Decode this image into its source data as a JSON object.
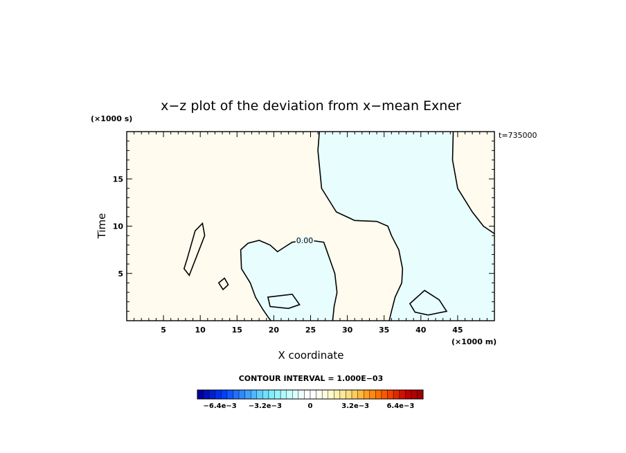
{
  "chart_data": {
    "type": "contour",
    "title": "x−z plot of the deviation from x−mean Exner",
    "xlabel": "X coordinate",
    "ylabel": "Time",
    "x_unit": "(×1000 m)",
    "y_unit": "(×1000 s)",
    "time_label": "t=735000",
    "xlim": [
      0,
      50
    ],
    "ylim": [
      0,
      20
    ],
    "x_ticks": [
      5,
      10,
      15,
      20,
      25,
      30,
      35,
      40,
      45
    ],
    "y_ticks": [
      5,
      10,
      15
    ],
    "contour_interval_text": "CONTOUR INTERVAL = 1.000E−03",
    "contour_label": "0.00",
    "contour_levels": [
      0
    ],
    "regions": [
      {
        "sign": "positive",
        "color": "#fffbee"
      },
      {
        "sign": "negative",
        "color": "#e8fefe"
      }
    ],
    "zero_contour_main": [
      [
        28,
        -0.2
      ],
      [
        28.2,
        1.5
      ],
      [
        28.6,
        3
      ],
      [
        28.3,
        5
      ],
      [
        27.3,
        7.2
      ],
      [
        26.8,
        8.3
      ],
      [
        25,
        8.5
      ],
      [
        23.5,
        8.4
      ],
      [
        22.5,
        8.3
      ],
      [
        21.5,
        7.8
      ],
      [
        20.5,
        7.3
      ],
      [
        19.5,
        8.0
      ],
      [
        18,
        8.5
      ],
      [
        16.5,
        8.2
      ],
      [
        15.5,
        7.5
      ],
      [
        15.6,
        5.5
      ],
      [
        16.8,
        4.0
      ],
      [
        17.5,
        2.5
      ],
      [
        18.5,
        1.2
      ],
      [
        19.3,
        0.3
      ],
      [
        19.6,
        -0.2
      ]
    ],
    "zero_contour_right": [
      [
        26.2,
        20.2
      ],
      [
        26.0,
        18
      ],
      [
        26.5,
        14
      ],
      [
        28.5,
        11.5
      ],
      [
        31,
        10.6
      ],
      [
        34,
        10.5
      ],
      [
        35.5,
        10
      ],
      [
        36,
        9.0
      ],
      [
        37,
        7.5
      ],
      [
        37.5,
        5.5
      ],
      [
        37.4,
        4.0
      ],
      [
        36.5,
        2.5
      ],
      [
        36,
        1.0
      ],
      [
        35.7,
        -0.2
      ]
    ],
    "zero_contour_far_right": [
      [
        44.4,
        20.2
      ],
      [
        44.3,
        17
      ],
      [
        45,
        14
      ],
      [
        47,
        11.5
      ],
      [
        48.5,
        10
      ],
      [
        50,
        9.2
      ]
    ],
    "colorbar": {
      "min": -0.008,
      "max": 0.008,
      "tick_labels": [
        "−6.4e−3",
        "−3.2e−3",
        "0",
        "3.2e−3",
        "6.4e−3"
      ],
      "tick_values": [
        -0.0064,
        -0.0032,
        0,
        0.0032,
        0.0064
      ],
      "colors": [
        "#0000a0",
        "#0010b8",
        "#0020d0",
        "#0030e8",
        "#0040ff",
        "#1058ff",
        "#2070ff",
        "#3088ff",
        "#40a0ff",
        "#50b8ff",
        "#60d0ff",
        "#70e0ff",
        "#80ecff",
        "#98f4ff",
        "#b0faff",
        "#c8fcff",
        "#dcfeff",
        "#eefeff",
        "#ffffff",
        "#ffffff",
        "#fffff0",
        "#fffce0",
        "#fff8c8",
        "#fff0b0",
        "#ffe898",
        "#ffdc80",
        "#ffcc60",
        "#ffb840",
        "#ffa020",
        "#ff8810",
        "#ff7000",
        "#f85800",
        "#f04000",
        "#e02800",
        "#d01000",
        "#c00000",
        "#b00000",
        "#a00000"
      ]
    }
  }
}
